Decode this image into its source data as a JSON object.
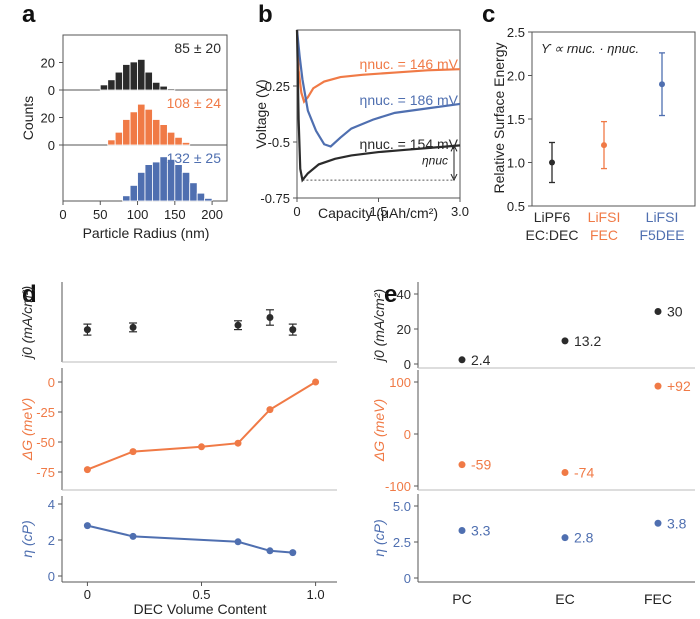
{
  "colors": {
    "black": "#2b2b2b",
    "orange": "#f07a46",
    "blue": "#4f6fb0",
    "grid": "#999999"
  },
  "panel_labels": [
    "a",
    "b",
    "c",
    "d",
    "e"
  ],
  "chart_data": [
    {
      "panel": "a",
      "type": "bar",
      "xlabel": "Particle Radius (nm)",
      "ylabel": "Counts",
      "xlim": [
        0,
        220
      ],
      "xticks": [
        "0",
        "50",
        "100",
        "150",
        "200"
      ],
      "yticks": [
        "0",
        "20"
      ],
      "bin_width": 10,
      "series": [
        {
          "annotation": "85 ± 20",
          "color": "#2b2b2b",
          "bin_starts": [
            50,
            60,
            70,
            80,
            90,
            100,
            110,
            120,
            130,
            140
          ],
          "values": [
            4,
            8,
            14,
            20,
            22,
            24,
            14,
            6,
            3,
            1
          ]
        },
        {
          "annotation": "108 ± 24",
          "color": "#f07a46",
          "bin_starts": [
            60,
            70,
            80,
            90,
            100,
            110,
            120,
            130,
            140,
            150,
            160
          ],
          "values": [
            4,
            10,
            20,
            26,
            32,
            28,
            20,
            16,
            10,
            6,
            2
          ]
        },
        {
          "annotation": "132 ± 25",
          "color": "#4f6fb0",
          "bin_starts": [
            80,
            90,
            100,
            110,
            120,
            130,
            140,
            150,
            160,
            170,
            180,
            190
          ],
          "values": [
            4,
            12,
            22,
            28,
            30,
            34,
            32,
            28,
            22,
            14,
            6,
            2
          ]
        }
      ]
    },
    {
      "panel": "b",
      "type": "line",
      "xlabel": "Capacity (μAh/cm²)",
      "ylabel": "Voltage (V)",
      "xlim": [
        0,
        3.0
      ],
      "ylim": [
        -0.75,
        0
      ],
      "xticks": [
        "0",
        "1.5",
        "3.0"
      ],
      "yticks": [
        "-0.25",
        "-0.5",
        "-0.75"
      ],
      "eta_label": "ηnuc",
      "series": [
        {
          "label": "ηnuc. = 146 mV",
          "color": "#f07a46",
          "x": [
            0,
            0.03,
            0.08,
            0.13,
            0.2,
            0.3,
            0.5,
            0.8,
            1.2,
            1.8,
            2.4,
            3.0
          ],
          "y": [
            0,
            -0.18,
            -0.28,
            -0.32,
            -0.3,
            -0.26,
            -0.23,
            -0.21,
            -0.2,
            -0.19,
            -0.18,
            -0.175
          ]
        },
        {
          "label": "ηnuc. = 186 mV",
          "color": "#4f6fb0",
          "x": [
            0,
            0.05,
            0.1,
            0.2,
            0.35,
            0.5,
            0.62,
            0.8,
            1.0,
            1.4,
            1.8,
            2.4,
            3.0
          ],
          "y": [
            0,
            -0.12,
            -0.22,
            -0.36,
            -0.45,
            -0.51,
            -0.52,
            -0.48,
            -0.44,
            -0.4,
            -0.37,
            -0.35,
            -0.33
          ]
        },
        {
          "label": "ηnuc. = 154 mV",
          "color": "#2b2b2b",
          "x": [
            0,
            0.03,
            0.06,
            0.1,
            0.2,
            0.4,
            0.7,
            1.0,
            1.5,
            2.0,
            2.5,
            3.0
          ],
          "y": [
            0,
            -0.4,
            -0.62,
            -0.67,
            -0.64,
            -0.6,
            -0.575,
            -0.56,
            -0.545,
            -0.535,
            -0.525,
            -0.515
          ]
        }
      ]
    },
    {
      "panel": "c",
      "type": "scatter",
      "ylabel": "Relative Surface Energy",
      "ylim": [
        0.5,
        2.5
      ],
      "yticks": [
        "0.5",
        "1.0",
        "1.5",
        "2.0",
        "2.5"
      ],
      "formula": "ϒ ∝ rnuc. · ηnuc.",
      "categories": [
        {
          "line1": "LiPF6",
          "line2": "EC:DEC",
          "color": "#2b2b2b"
        },
        {
          "line1": "LiFSI",
          "line2": "FEC",
          "color": "#f07a46"
        },
        {
          "line1": "LiFSI",
          "line2": "F5DEE",
          "color": "#4f6fb0"
        }
      ],
      "values": [
        1.0,
        1.2,
        1.9
      ],
      "errors": [
        0.23,
        0.27,
        0.36
      ]
    },
    {
      "panel": "d",
      "type": "scatter",
      "xlabel": "DEC Volume Content",
      "xlim": [
        -0.05,
        1.05
      ],
      "xticks": [
        "0",
        "0.5",
        "1.0"
      ],
      "subplots": [
        {
          "ylabel": "j0 (mA/cm²)",
          "color": "#2b2b2b",
          "yticks": [],
          "ylim": [
            0,
            30
          ],
          "x": [
            0,
            0.2,
            0.66,
            0.8,
            0.9
          ],
          "y": [
            12,
            13,
            14,
            17.5,
            12
          ],
          "err": [
            2.5,
            2,
            2,
            3.5,
            2.5
          ],
          "connected": false
        },
        {
          "ylabel": "ΔG (meV)",
          "color": "#f07a46",
          "yticks": [
            "0",
            "-25",
            "-50",
            "-75"
          ],
          "ylim": [
            -85,
            5
          ],
          "x": [
            0,
            0.2,
            0.5,
            0.66,
            0.8,
            1.0
          ],
          "y": [
            -73,
            -58,
            -54,
            -51,
            -23,
            0
          ],
          "connected": true
        },
        {
          "ylabel": "η (cP)",
          "color": "#4f6fb0",
          "yticks": [
            "0",
            "2",
            "4"
          ],
          "ylim": [
            0,
            4
          ],
          "x": [
            0,
            0.2,
            0.66,
            0.8,
            0.9
          ],
          "y": [
            2.8,
            2.2,
            1.9,
            1.4,
            1.3
          ],
          "connected": true
        }
      ]
    },
    {
      "panel": "e",
      "type": "scatter",
      "categories": [
        "PC",
        "EC",
        "FEC"
      ],
      "subplots": [
        {
          "ylabel": "j0 (mA/cm²)",
          "color": "#2b2b2b",
          "yticks": [
            "0",
            "20",
            "40"
          ],
          "ylim": [
            0,
            40
          ],
          "values": [
            2.4,
            13.2,
            30
          ],
          "labels": [
            "2.4",
            "13.2",
            "30"
          ]
        },
        {
          "ylabel": "ΔG (meV)",
          "color": "#f07a46",
          "yticks": [
            "100",
            "0",
            "-100"
          ],
          "ylim": [
            -100,
            100
          ],
          "values": [
            -59,
            -74,
            92
          ],
          "labels": [
            "-59",
            "-74",
            "+92"
          ]
        },
        {
          "ylabel": "η (cP)",
          "color": "#4f6fb0",
          "yticks": [
            "0",
            "2.5",
            "5.0"
          ],
          "ylim": [
            0,
            5
          ],
          "values": [
            3.3,
            2.8,
            3.8
          ],
          "labels": [
            "3.3",
            "2.8",
            "3.8"
          ]
        }
      ]
    }
  ]
}
